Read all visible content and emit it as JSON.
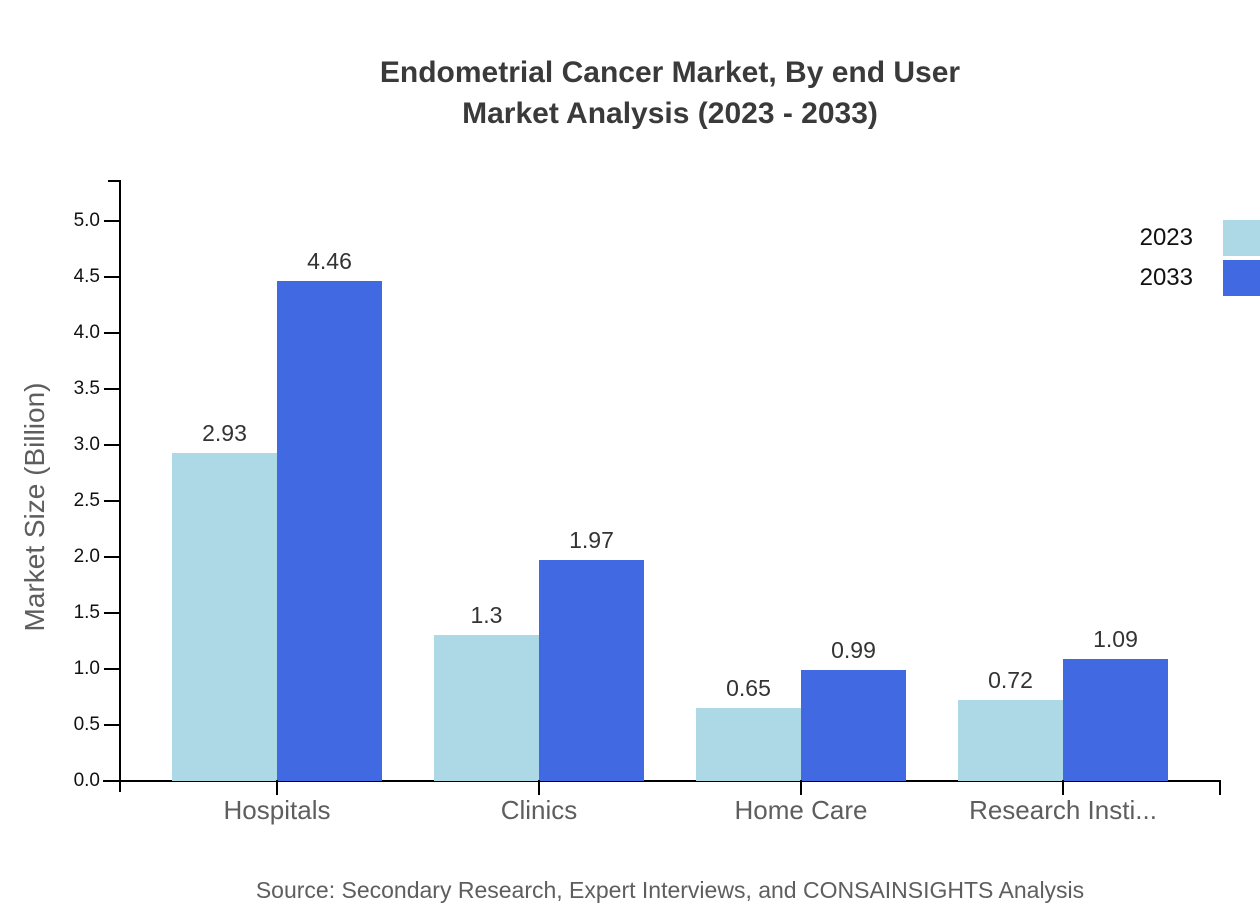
{
  "title": {
    "line1": "Endometrial Cancer Market, By end User",
    "line2": "Market Analysis (2023 - 2033)"
  },
  "chart_data": {
    "type": "bar",
    "categories": [
      "Hospitals",
      "Clinics",
      "Home Care",
      "Research Insti..."
    ],
    "series": [
      {
        "name": "2023",
        "color": "#ADD8E6",
        "values": [
          2.93,
          1.3,
          0.65,
          0.72
        ],
        "data_labels": [
          "2.93",
          "1.3",
          "0.65",
          "0.72"
        ]
      },
      {
        "name": "2033",
        "color": "#4169E1",
        "values": [
          4.46,
          1.97,
          0.99,
          1.09
        ],
        "data_labels": [
          "4.46",
          "1.97",
          "0.99",
          "1.09"
        ]
      }
    ],
    "title": "Endometrial Cancer Market, By end User Market Analysis (2023 - 2033)",
    "xlabel": "",
    "ylabel": "Market Size (Billion)",
    "ylim": [
      0.0,
      5.0
    ],
    "ytick_step": 0.5,
    "yticks": [
      "0.0",
      "0.5",
      "1.0",
      "1.5",
      "2.0",
      "2.5",
      "3.0",
      "3.5",
      "4.0",
      "4.5",
      "5.0"
    ],
    "grid": false,
    "legend_position": "top-right"
  },
  "source": "Source: Secondary Research, Expert Interviews, and CONSAINSIGHTS Analysis"
}
